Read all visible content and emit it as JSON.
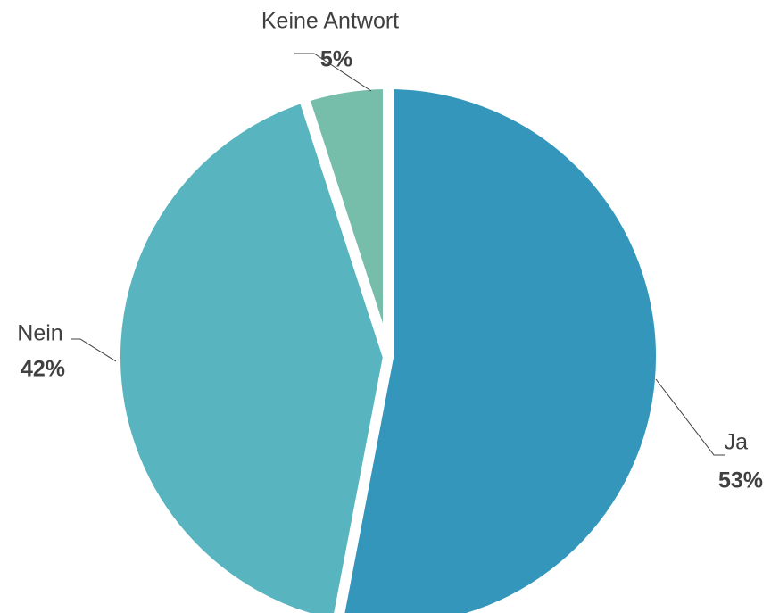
{
  "chart_data": {
    "type": "pie",
    "categories": [
      "Ja",
      "Nein",
      "Keine Antwort"
    ],
    "values": [
      53,
      42,
      5
    ],
    "value_labels": [
      "53%",
      "42%",
      "5%"
    ],
    "colors": [
      "#3596bc",
      "#58b4bf",
      "#76bdaa"
    ]
  }
}
